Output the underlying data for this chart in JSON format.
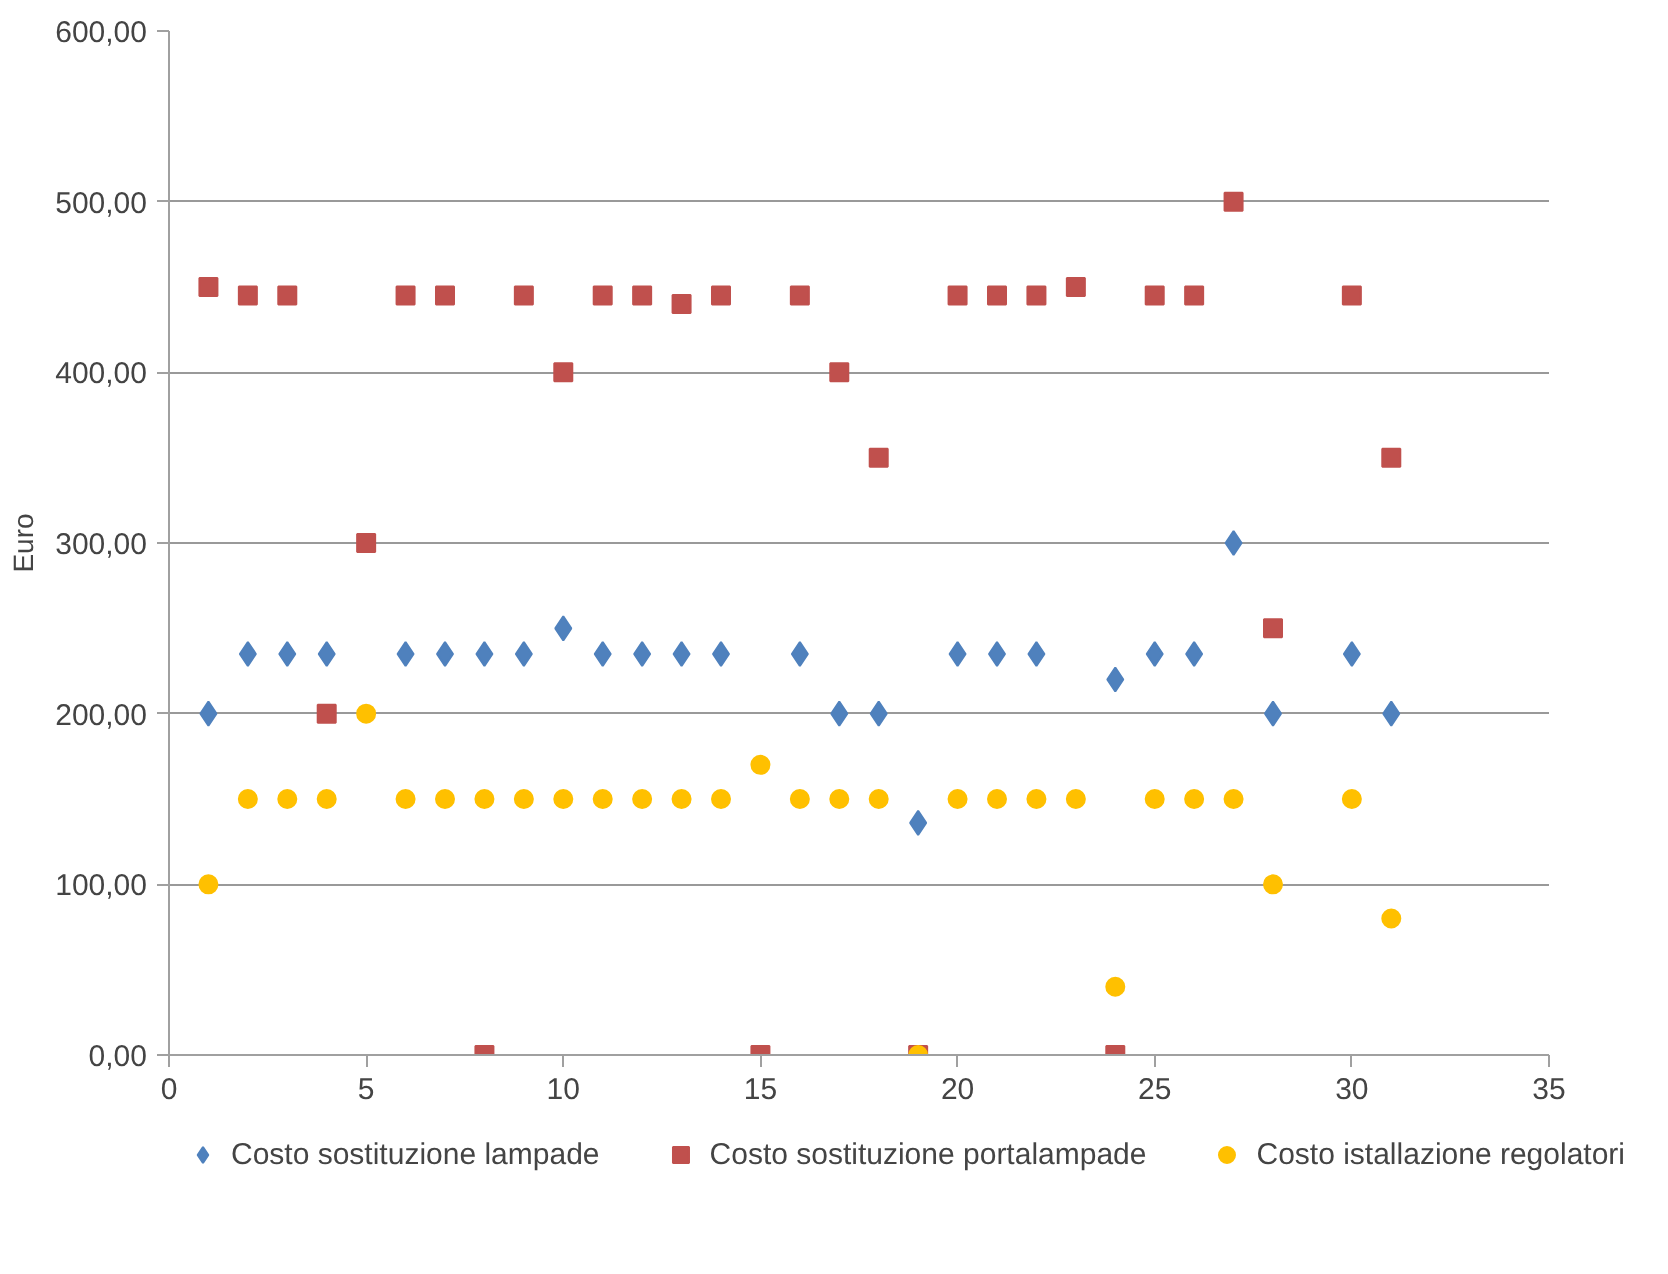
{
  "chart_data": {
    "type": "scatter",
    "ylabel": "Euro",
    "x": [
      1,
      2,
      3,
      4,
      5,
      6,
      7,
      8,
      9,
      10,
      11,
      12,
      13,
      14,
      15,
      16,
      17,
      18,
      19,
      20,
      21,
      22,
      23,
      24,
      25,
      26,
      27,
      28,
      29,
      30,
      31
    ],
    "series": [
      {
        "name": "Costo sostituzione lampade",
        "color": "#4f81bd",
        "marker": "diamond",
        "values": [
          200,
          235,
          235,
          235,
          null,
          235,
          235,
          235,
          235,
          250,
          235,
          235,
          235,
          235,
          null,
          235,
          200,
          200,
          136,
          235,
          235,
          235,
          null,
          220,
          235,
          235,
          300,
          200,
          null,
          235,
          200
        ]
      },
      {
        "name": "Costo sostituzione portalampade",
        "color": "#c0504d",
        "marker": "square",
        "values": [
          450,
          445,
          445,
          200,
          300,
          445,
          445,
          0,
          445,
          400,
          445,
          445,
          440,
          445,
          0,
          445,
          400,
          350,
          0,
          445,
          445,
          445,
          450,
          0,
          445,
          445,
          500,
          250,
          null,
          445,
          350
        ]
      },
      {
        "name": "Costo istallazione regolatori",
        "color": "#ffc000",
        "marker": "circle",
        "values": [
          100,
          150,
          150,
          150,
          200,
          150,
          150,
          150,
          150,
          150,
          150,
          150,
          150,
          150,
          170,
          150,
          150,
          150,
          0,
          150,
          150,
          150,
          150,
          40,
          150,
          150,
          150,
          100,
          null,
          150,
          80
        ]
      }
    ],
    "xlim": [
      0,
      35
    ],
    "xticks": [
      0,
      5,
      10,
      15,
      20,
      25,
      30,
      35
    ],
    "ylim": [
      0,
      600
    ],
    "yticks": [
      {
        "value": 0,
        "label": "0,00"
      },
      {
        "value": 100,
        "label": "100,00"
      },
      {
        "value": 200,
        "label": "200,00"
      },
      {
        "value": 300,
        "label": "300,00"
      },
      {
        "value": 400,
        "label": "400,00"
      },
      {
        "value": 500,
        "label": "500,00"
      },
      {
        "value": 600,
        "label": "600,00"
      }
    ],
    "grid": "y",
    "legend": "bottom"
  }
}
